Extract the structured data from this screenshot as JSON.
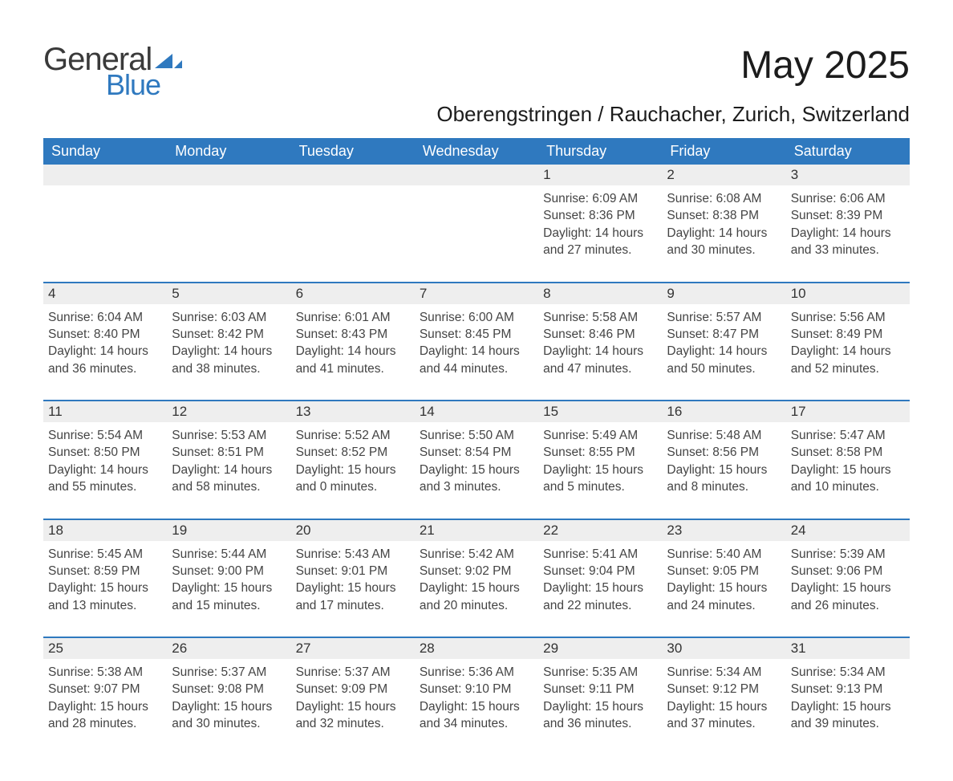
{
  "brand": {
    "word1": "General",
    "word2": "Blue",
    "accent_color": "#2f79bf"
  },
  "title": {
    "month_year": "May 2025",
    "location": "Oberengstringen / Rauchacher, Zurich, Switzerland"
  },
  "colors": {
    "header_bg": "#2f79bf",
    "header_text": "#ffffff",
    "daynum_bg": "#eeeeee",
    "separator": "#2f79bf",
    "text": "#242424",
    "muted": "#444444",
    "background": "#ffffff"
  },
  "weekdays": [
    "Sunday",
    "Monday",
    "Tuesday",
    "Wednesday",
    "Thursday",
    "Friday",
    "Saturday"
  ],
  "labels": {
    "sunrise": "Sunrise:",
    "sunset": "Sunset:",
    "daylight": "Daylight:"
  },
  "weeks": [
    [
      null,
      null,
      null,
      null,
      {
        "n": "1",
        "sunrise": "6:09 AM",
        "sunset": "8:36 PM",
        "daylight": "14 hours and 27 minutes."
      },
      {
        "n": "2",
        "sunrise": "6:08 AM",
        "sunset": "8:38 PM",
        "daylight": "14 hours and 30 minutes."
      },
      {
        "n": "3",
        "sunrise": "6:06 AM",
        "sunset": "8:39 PM",
        "daylight": "14 hours and 33 minutes."
      }
    ],
    [
      {
        "n": "4",
        "sunrise": "6:04 AM",
        "sunset": "8:40 PM",
        "daylight": "14 hours and 36 minutes."
      },
      {
        "n": "5",
        "sunrise": "6:03 AM",
        "sunset": "8:42 PM",
        "daylight": "14 hours and 38 minutes."
      },
      {
        "n": "6",
        "sunrise": "6:01 AM",
        "sunset": "8:43 PM",
        "daylight": "14 hours and 41 minutes."
      },
      {
        "n": "7",
        "sunrise": "6:00 AM",
        "sunset": "8:45 PM",
        "daylight": "14 hours and 44 minutes."
      },
      {
        "n": "8",
        "sunrise": "5:58 AM",
        "sunset": "8:46 PM",
        "daylight": "14 hours and 47 minutes."
      },
      {
        "n": "9",
        "sunrise": "5:57 AM",
        "sunset": "8:47 PM",
        "daylight": "14 hours and 50 minutes."
      },
      {
        "n": "10",
        "sunrise": "5:56 AM",
        "sunset": "8:49 PM",
        "daylight": "14 hours and 52 minutes."
      }
    ],
    [
      {
        "n": "11",
        "sunrise": "5:54 AM",
        "sunset": "8:50 PM",
        "daylight": "14 hours and 55 minutes."
      },
      {
        "n": "12",
        "sunrise": "5:53 AM",
        "sunset": "8:51 PM",
        "daylight": "14 hours and 58 minutes."
      },
      {
        "n": "13",
        "sunrise": "5:52 AM",
        "sunset": "8:52 PM",
        "daylight": "15 hours and 0 minutes."
      },
      {
        "n": "14",
        "sunrise": "5:50 AM",
        "sunset": "8:54 PM",
        "daylight": "15 hours and 3 minutes."
      },
      {
        "n": "15",
        "sunrise": "5:49 AM",
        "sunset": "8:55 PM",
        "daylight": "15 hours and 5 minutes."
      },
      {
        "n": "16",
        "sunrise": "5:48 AM",
        "sunset": "8:56 PM",
        "daylight": "15 hours and 8 minutes."
      },
      {
        "n": "17",
        "sunrise": "5:47 AM",
        "sunset": "8:58 PM",
        "daylight": "15 hours and 10 minutes."
      }
    ],
    [
      {
        "n": "18",
        "sunrise": "5:45 AM",
        "sunset": "8:59 PM",
        "daylight": "15 hours and 13 minutes."
      },
      {
        "n": "19",
        "sunrise": "5:44 AM",
        "sunset": "9:00 PM",
        "daylight": "15 hours and 15 minutes."
      },
      {
        "n": "20",
        "sunrise": "5:43 AM",
        "sunset": "9:01 PM",
        "daylight": "15 hours and 17 minutes."
      },
      {
        "n": "21",
        "sunrise": "5:42 AM",
        "sunset": "9:02 PM",
        "daylight": "15 hours and 20 minutes."
      },
      {
        "n": "22",
        "sunrise": "5:41 AM",
        "sunset": "9:04 PM",
        "daylight": "15 hours and 22 minutes."
      },
      {
        "n": "23",
        "sunrise": "5:40 AM",
        "sunset": "9:05 PM",
        "daylight": "15 hours and 24 minutes."
      },
      {
        "n": "24",
        "sunrise": "5:39 AM",
        "sunset": "9:06 PM",
        "daylight": "15 hours and 26 minutes."
      }
    ],
    [
      {
        "n": "25",
        "sunrise": "5:38 AM",
        "sunset": "9:07 PM",
        "daylight": "15 hours and 28 minutes."
      },
      {
        "n": "26",
        "sunrise": "5:37 AM",
        "sunset": "9:08 PM",
        "daylight": "15 hours and 30 minutes."
      },
      {
        "n": "27",
        "sunrise": "5:37 AM",
        "sunset": "9:09 PM",
        "daylight": "15 hours and 32 minutes."
      },
      {
        "n": "28",
        "sunrise": "5:36 AM",
        "sunset": "9:10 PM",
        "daylight": "15 hours and 34 minutes."
      },
      {
        "n": "29",
        "sunrise": "5:35 AM",
        "sunset": "9:11 PM",
        "daylight": "15 hours and 36 minutes."
      },
      {
        "n": "30",
        "sunrise": "5:34 AM",
        "sunset": "9:12 PM",
        "daylight": "15 hours and 37 minutes."
      },
      {
        "n": "31",
        "sunrise": "5:34 AM",
        "sunset": "9:13 PM",
        "daylight": "15 hours and 39 minutes."
      }
    ]
  ]
}
